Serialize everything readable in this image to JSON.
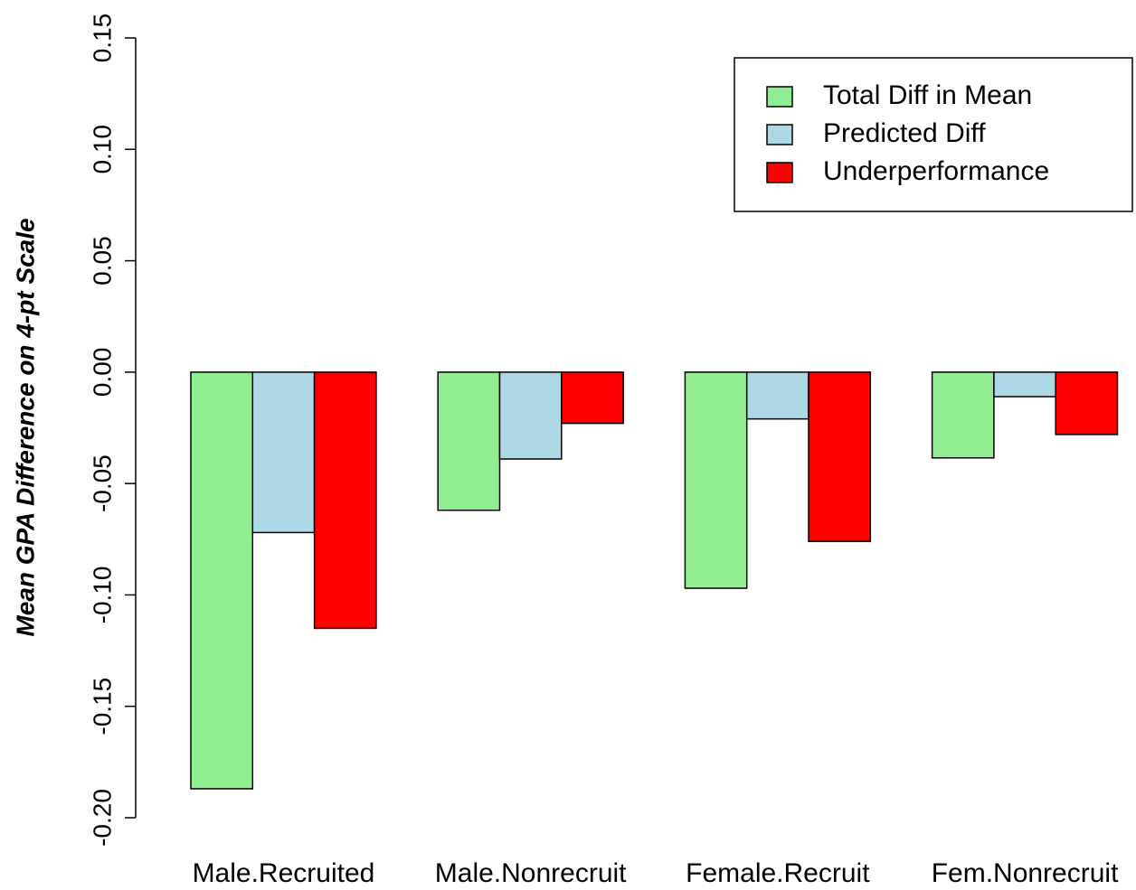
{
  "chart_data": {
    "type": "bar",
    "ylabel": "Mean GPA Difference on 4-pt Scale",
    "categories": [
      "Male.Recruited",
      "Male.Nonrecruit",
      "Female.Recruit",
      "Fem.Nonrecruit"
    ],
    "series": [
      {
        "name": "Total Diff in Mean",
        "color": "#90ee90",
        "values": [
          -0.187,
          -0.062,
          -0.097,
          -0.0385
        ]
      },
      {
        "name": "Predicted Diff",
        "color": "#add8e6",
        "values": [
          -0.072,
          -0.039,
          -0.021,
          -0.011
        ]
      },
      {
        "name": "Underperformance",
        "color": "#ff0000",
        "values": [
          -0.115,
          -0.023,
          -0.076,
          -0.028
        ]
      }
    ],
    "ylim": [
      -0.2,
      0.15
    ],
    "yticks": [
      {
        "value": -0.2,
        "label": "-0.20"
      },
      -0.15,
      {
        "value": -0.1,
        "label": "-0.10"
      },
      -0.05,
      {
        "value": 0,
        "label": "0.00"
      },
      0.05,
      {
        "value": 0.1,
        "label": "0.10"
      },
      0.15
    ],
    "legend": "top-right"
  }
}
